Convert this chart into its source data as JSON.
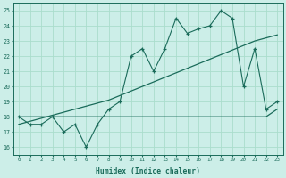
{
  "xlabel": "Humidex (Indice chaleur)",
  "bg_color": "#cceee8",
  "grid_color": "#aaddcc",
  "line_color": "#1a6b5a",
  "xlim": [
    -0.5,
    23.5
  ],
  "ylim": [
    15.5,
    25.5
  ],
  "xticks": [
    0,
    1,
    2,
    3,
    4,
    5,
    6,
    7,
    8,
    9,
    10,
    11,
    12,
    13,
    14,
    15,
    16,
    17,
    18,
    19,
    20,
    21,
    22,
    23
  ],
  "yticks": [
    16,
    17,
    18,
    19,
    20,
    21,
    22,
    23,
    24,
    25
  ],
  "line_jagged": [
    18.0,
    17.5,
    17.5,
    18.0,
    17.0,
    17.5,
    16.0,
    17.5,
    18.5,
    19.0,
    22.0,
    22.5,
    21.0,
    22.5,
    24.5,
    23.5,
    23.8,
    24.0,
    25.0,
    24.5,
    20.0,
    22.5,
    18.5,
    19.0
  ],
  "line_regression": [
    17.5,
    17.7,
    17.9,
    18.1,
    18.3,
    18.5,
    18.7,
    18.9,
    19.1,
    19.4,
    19.7,
    20.0,
    20.3,
    20.6,
    20.9,
    21.2,
    21.5,
    21.8,
    22.1,
    22.4,
    22.7,
    23.0,
    23.2,
    23.4
  ],
  "line_flat": [
    18.0,
    18.0,
    18.0,
    18.0,
    18.0,
    18.0,
    18.0,
    18.0,
    18.0,
    18.0,
    18.0,
    18.0,
    18.0,
    18.0,
    18.0,
    18.0,
    18.0,
    18.0,
    18.0,
    18.0,
    18.0,
    18.0,
    18.0,
    18.5
  ]
}
